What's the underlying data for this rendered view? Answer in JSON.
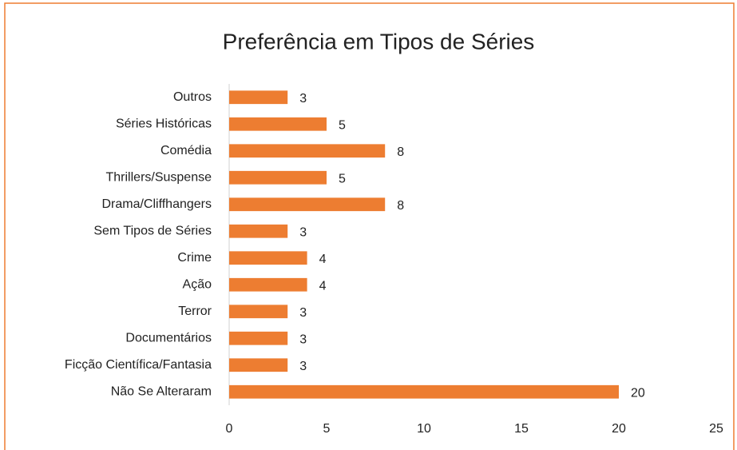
{
  "chart_data": {
    "type": "bar",
    "orientation": "horizontal",
    "title": "Preferência em Tipos de Séries",
    "categories": [
      "Outros",
      "Séries Históricas",
      "Comédia",
      "Thrillers/Suspense",
      "Drama/Cliffhangers",
      "Sem Tipos de Séries",
      "Crime",
      "Ação",
      "Terror",
      "Documentários",
      "Ficção Científica/Fantasia",
      "Não Se Alteraram"
    ],
    "values": [
      3,
      5,
      8,
      5,
      8,
      3,
      4,
      4,
      3,
      3,
      3,
      20
    ],
    "color": "#ed7d31",
    "xlim": [
      0,
      25
    ],
    "xticks": [
      0,
      5,
      10,
      15,
      20,
      25
    ],
    "grid": false
  }
}
